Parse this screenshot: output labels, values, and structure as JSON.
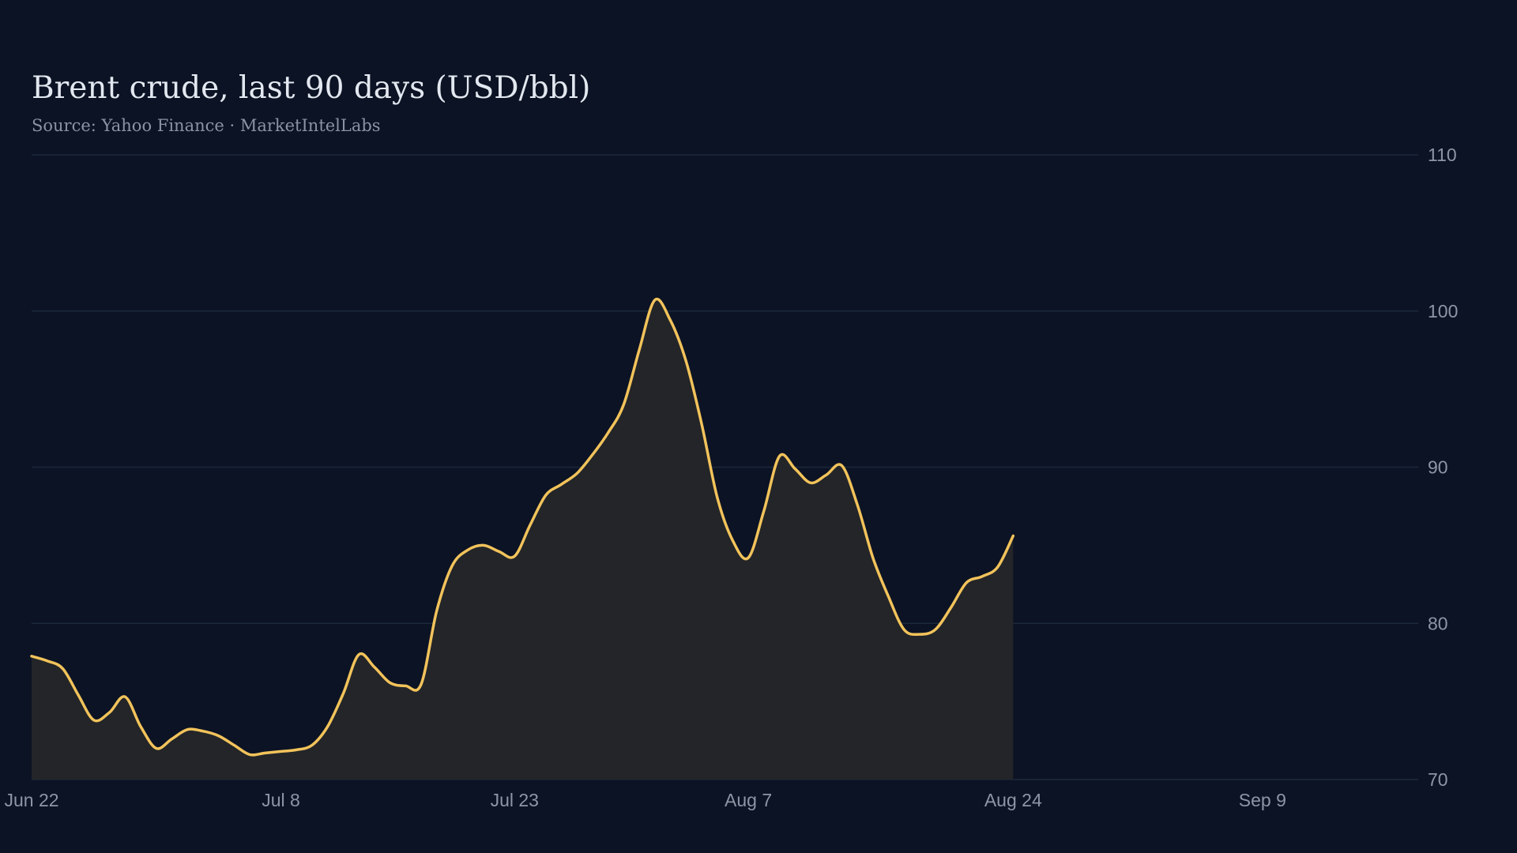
{
  "chart_data": {
    "type": "area",
    "title": "Brent crude, last 90 days (USD/bbl)",
    "subtitle": "Source: Yahoo Finance · MarketIntelLabs",
    "xlabel": "",
    "ylabel": "",
    "ylim": [
      70,
      110
    ],
    "yticks": [
      70,
      80,
      90,
      100,
      110
    ],
    "xlim": [
      "2025-06-22",
      "2025-09-19"
    ],
    "xticks": [
      {
        "date": "2025-06-22",
        "label": "Jun 22"
      },
      {
        "date": "2025-07-08",
        "label": "Jul  8"
      },
      {
        "date": "2025-07-23",
        "label": "Jul 23"
      },
      {
        "date": "2025-08-07",
        "label": "Aug  7"
      },
      {
        "date": "2025-08-24",
        "label": "Aug 24"
      },
      {
        "date": "2025-09-09",
        "label": "Sep  9"
      }
    ],
    "grid": true,
    "y_axis_side": "right",
    "colors": {
      "line": "#f2c35b",
      "fill": "#232528",
      "grid": "#1b2a3c",
      "background": "#0c1324"
    },
    "series": [
      {
        "values": [
          [
            "2025-06-22",
            77.9
          ],
          [
            "2025-06-23",
            77.6
          ],
          [
            "2025-06-24",
            77.1
          ],
          [
            "2025-06-25",
            75.4
          ],
          [
            "2025-06-26",
            73.8
          ],
          [
            "2025-06-27",
            74.3
          ],
          [
            "2025-06-28",
            75.3
          ],
          [
            "2025-06-29",
            73.4
          ],
          [
            "2025-06-30",
            72.0
          ],
          [
            "2025-07-01",
            72.6
          ],
          [
            "2025-07-02",
            73.2
          ],
          [
            "2025-07-03",
            73.1
          ],
          [
            "2025-07-04",
            72.8
          ],
          [
            "2025-07-05",
            72.2
          ],
          [
            "2025-07-06",
            71.6
          ],
          [
            "2025-07-07",
            71.7
          ],
          [
            "2025-07-08",
            71.8
          ],
          [
            "2025-07-09",
            71.9
          ],
          [
            "2025-07-10",
            72.2
          ],
          [
            "2025-07-11",
            73.4
          ],
          [
            "2025-07-12",
            75.5
          ],
          [
            "2025-07-13",
            78.0
          ],
          [
            "2025-07-14",
            77.2
          ],
          [
            "2025-07-15",
            76.2
          ],
          [
            "2025-07-16",
            76.0
          ],
          [
            "2025-07-17",
            76.1
          ],
          [
            "2025-07-18",
            80.8
          ],
          [
            "2025-07-19",
            83.7
          ],
          [
            "2025-07-20",
            84.7
          ],
          [
            "2025-07-21",
            85.0
          ],
          [
            "2025-07-22",
            84.6
          ],
          [
            "2025-07-23",
            84.3
          ],
          [
            "2025-07-24",
            86.3
          ],
          [
            "2025-07-25",
            88.2
          ],
          [
            "2025-07-26",
            88.9
          ],
          [
            "2025-07-27",
            89.6
          ],
          [
            "2025-07-28",
            90.8
          ],
          [
            "2025-07-29",
            92.2
          ],
          [
            "2025-07-30",
            94.0
          ],
          [
            "2025-07-31",
            97.5
          ],
          [
            "2025-08-01",
            100.7
          ],
          [
            "2025-08-02",
            99.4
          ],
          [
            "2025-08-03",
            96.8
          ],
          [
            "2025-08-04",
            92.8
          ],
          [
            "2025-08-05",
            88.1
          ],
          [
            "2025-08-06",
            85.3
          ],
          [
            "2025-08-07",
            84.2
          ],
          [
            "2025-08-08",
            87.2
          ],
          [
            "2025-08-09",
            90.7
          ],
          [
            "2025-08-10",
            89.9
          ],
          [
            "2025-08-11",
            89.0
          ],
          [
            "2025-08-12",
            89.5
          ],
          [
            "2025-08-13",
            90.1
          ],
          [
            "2025-08-14",
            87.6
          ],
          [
            "2025-08-15",
            84.2
          ],
          [
            "2025-08-16",
            81.7
          ],
          [
            "2025-08-17",
            79.6
          ],
          [
            "2025-08-18",
            79.3
          ],
          [
            "2025-08-19",
            79.6
          ],
          [
            "2025-08-20",
            81.0
          ],
          [
            "2025-08-21",
            82.6
          ],
          [
            "2025-08-22",
            83.0
          ],
          [
            "2025-08-23",
            83.6
          ],
          [
            "2025-08-24",
            85.6
          ]
        ]
      }
    ]
  }
}
